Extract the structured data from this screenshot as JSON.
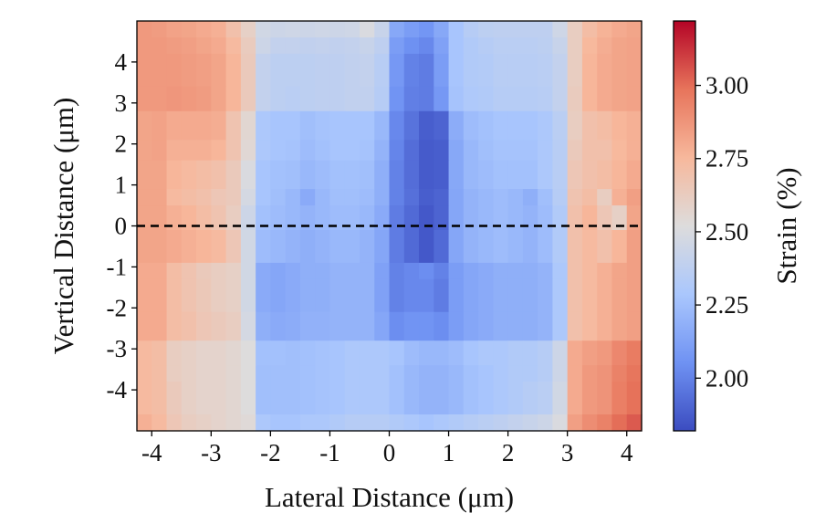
{
  "chart_data": {
    "type": "heatmap",
    "xlabel": "Lateral Distance (μm)",
    "ylabel": "Vertical Distance (μm)",
    "colorbar_label": "Strain (%)",
    "xlim": [
      -4.25,
      4.25
    ],
    "ylim": [
      -5.0,
      5.0
    ],
    "x_ticks": [
      -4,
      -3,
      -2,
      -1,
      0,
      1,
      2,
      3,
      4
    ],
    "x_tick_labels": [
      "-4",
      "-3",
      "-2",
      "-1",
      "0",
      "1",
      "2",
      "3",
      "4"
    ],
    "y_ticks": [
      4,
      3,
      2,
      1,
      0,
      -1,
      -2,
      -3,
      -4
    ],
    "y_tick_labels": [
      "4",
      "3",
      "2",
      "1",
      "0",
      "-1",
      "-2",
      "-3",
      "-4"
    ],
    "colorbar_range": [
      1.82,
      3.22
    ],
    "colorbar_ticks": [
      3.0,
      2.75,
      2.5,
      2.25,
      2.0
    ],
    "colorbar_tick_labels": [
      "3.00",
      "2.75",
      "2.50",
      "2.25",
      "2.00"
    ],
    "colormap": "coolwarm",
    "colormap_stops": [
      "#3b4cc0",
      "#6f92f3",
      "#aac7fd",
      "#dddcdc",
      "#f7b89c",
      "#e7745b",
      "#b40426"
    ],
    "reference_line": {
      "y": 0,
      "style": "dashed",
      "color": "#000000"
    },
    "cell_x_edges": [
      -4.25,
      -4.0,
      -3.75,
      -3.5,
      -3.25,
      -3.0,
      -2.75,
      -2.5,
      -2.25,
      -2.0,
      -1.75,
      -1.5,
      -1.25,
      -1.0,
      -0.75,
      -0.5,
      -0.25,
      0.0,
      0.25,
      0.5,
      0.75,
      1.0,
      1.25,
      1.5,
      1.75,
      2.0,
      2.25,
      2.5,
      2.75,
      3.0,
      3.25,
      3.5,
      3.75,
      4.0,
      4.25
    ],
    "row_y_edges": [
      [
        4.6,
        5.0
      ],
      [
        4.2,
        4.6
      ],
      [
        3.4,
        4.2
      ],
      [
        2.8,
        3.4
      ],
      [
        2.1,
        2.8
      ],
      [
        1.6,
        2.1
      ],
      [
        0.9,
        1.6
      ],
      [
        0.5,
        0.9
      ],
      [
        -0.1,
        0.5
      ],
      [
        -0.9,
        -0.1
      ],
      [
        -1.3,
        -0.9
      ],
      [
        -2.1,
        -1.3
      ],
      [
        -2.8,
        -2.1
      ],
      [
        -3.4,
        -2.8
      ],
      [
        -3.8,
        -3.4
      ],
      [
        -4.6,
        -3.8
      ],
      [
        -5.0,
        -4.6
      ]
    ],
    "values": [
      [
        2.86,
        2.85,
        2.83,
        2.82,
        2.8,
        2.78,
        2.7,
        2.6,
        2.46,
        2.44,
        2.45,
        2.44,
        2.45,
        2.44,
        2.45,
        2.5,
        2.42,
        2.15,
        2.1,
        2.07,
        2.15,
        2.28,
        2.34,
        2.37,
        2.38,
        2.38,
        2.38,
        2.38,
        2.45,
        2.62,
        2.72,
        2.77,
        2.8,
        2.82
      ],
      [
        2.86,
        2.86,
        2.85,
        2.84,
        2.82,
        2.8,
        2.74,
        2.63,
        2.44,
        2.4,
        2.4,
        2.39,
        2.4,
        2.39,
        2.4,
        2.42,
        2.38,
        2.1,
        2.05,
        2.02,
        2.12,
        2.28,
        2.32,
        2.34,
        2.36,
        2.36,
        2.36,
        2.37,
        2.42,
        2.62,
        2.75,
        2.79,
        2.82,
        2.83
      ],
      [
        2.86,
        2.86,
        2.86,
        2.85,
        2.84,
        2.82,
        2.76,
        2.64,
        2.4,
        2.37,
        2.37,
        2.37,
        2.38,
        2.38,
        2.39,
        2.4,
        2.35,
        2.08,
        2.0,
        1.98,
        2.1,
        2.28,
        2.32,
        2.33,
        2.35,
        2.35,
        2.35,
        2.36,
        2.4,
        2.62,
        2.76,
        2.8,
        2.82,
        2.83
      ],
      [
        2.86,
        2.86,
        2.87,
        2.86,
        2.85,
        2.82,
        2.76,
        2.64,
        2.4,
        2.37,
        2.36,
        2.37,
        2.38,
        2.38,
        2.39,
        2.39,
        2.34,
        2.06,
        1.99,
        1.98,
        2.08,
        2.27,
        2.31,
        2.32,
        2.34,
        2.34,
        2.34,
        2.35,
        2.4,
        2.63,
        2.76,
        2.8,
        2.82,
        2.83
      ],
      [
        2.82,
        2.83,
        2.8,
        2.8,
        2.8,
        2.79,
        2.68,
        2.56,
        2.3,
        2.28,
        2.28,
        2.25,
        2.27,
        2.28,
        2.28,
        2.28,
        2.22,
        2.02,
        1.95,
        1.88,
        1.9,
        2.17,
        2.24,
        2.26,
        2.28,
        2.28,
        2.28,
        2.3,
        2.36,
        2.62,
        2.7,
        2.72,
        2.76,
        2.78
      ],
      [
        2.82,
        2.83,
        2.78,
        2.78,
        2.78,
        2.76,
        2.68,
        2.55,
        2.3,
        2.28,
        2.27,
        2.24,
        2.26,
        2.28,
        2.28,
        2.27,
        2.2,
        2.01,
        1.93,
        1.87,
        1.88,
        2.15,
        2.22,
        2.25,
        2.27,
        2.27,
        2.27,
        2.3,
        2.35,
        2.64,
        2.7,
        2.7,
        2.75,
        2.78
      ],
      [
        2.82,
        2.82,
        2.76,
        2.74,
        2.72,
        2.7,
        2.64,
        2.5,
        2.28,
        2.26,
        2.25,
        2.22,
        2.24,
        2.26,
        2.26,
        2.25,
        2.18,
        2.0,
        1.93,
        1.87,
        1.88,
        2.15,
        2.22,
        2.24,
        2.26,
        2.26,
        2.26,
        2.3,
        2.35,
        2.66,
        2.7,
        2.72,
        2.76,
        2.8
      ],
      [
        2.82,
        2.82,
        2.74,
        2.72,
        2.7,
        2.66,
        2.64,
        2.48,
        2.28,
        2.25,
        2.22,
        2.16,
        2.22,
        2.25,
        2.25,
        2.24,
        2.18,
        2.0,
        1.94,
        1.88,
        1.9,
        2.14,
        2.2,
        2.22,
        2.24,
        2.22,
        2.18,
        2.25,
        2.34,
        2.68,
        2.72,
        2.62,
        2.78,
        2.84
      ],
      [
        2.82,
        2.82,
        2.78,
        2.76,
        2.72,
        2.68,
        2.62,
        2.44,
        2.26,
        2.24,
        2.22,
        2.2,
        2.22,
        2.24,
        2.24,
        2.22,
        2.16,
        1.98,
        1.92,
        1.86,
        1.9,
        2.14,
        2.2,
        2.22,
        2.24,
        2.22,
        2.2,
        2.24,
        2.32,
        2.7,
        2.76,
        2.66,
        2.6,
        2.82
      ],
      [
        2.82,
        2.82,
        2.8,
        2.78,
        2.76,
        2.74,
        2.66,
        2.46,
        2.24,
        2.22,
        2.2,
        2.18,
        2.2,
        2.22,
        2.22,
        2.2,
        2.14,
        1.98,
        1.92,
        1.86,
        1.92,
        2.14,
        2.2,
        2.22,
        2.24,
        2.22,
        2.2,
        2.24,
        2.32,
        2.7,
        2.74,
        2.7,
        2.76,
        2.84
      ],
      [
        2.8,
        2.8,
        2.72,
        2.68,
        2.64,
        2.62,
        2.6,
        2.46,
        2.16,
        2.14,
        2.16,
        2.18,
        2.18,
        2.2,
        2.2,
        2.2,
        2.12,
        2.0,
        2.02,
        2.04,
        2.0,
        2.1,
        2.14,
        2.16,
        2.18,
        2.18,
        2.18,
        2.2,
        2.3,
        2.7,
        2.74,
        2.78,
        2.82,
        2.84
      ],
      [
        2.8,
        2.8,
        2.72,
        2.68,
        2.65,
        2.62,
        2.6,
        2.46,
        2.16,
        2.14,
        2.16,
        2.18,
        2.18,
        2.2,
        2.2,
        2.2,
        2.12,
        2.0,
        2.02,
        2.02,
        1.98,
        2.1,
        2.14,
        2.16,
        2.18,
        2.18,
        2.18,
        2.2,
        2.3,
        2.7,
        2.74,
        2.78,
        2.82,
        2.84
      ],
      [
        2.8,
        2.8,
        2.72,
        2.7,
        2.66,
        2.64,
        2.62,
        2.48,
        2.18,
        2.16,
        2.17,
        2.19,
        2.19,
        2.2,
        2.2,
        2.2,
        2.14,
        2.04,
        2.06,
        2.06,
        2.04,
        2.1,
        2.14,
        2.16,
        2.18,
        2.18,
        2.18,
        2.2,
        2.3,
        2.7,
        2.74,
        2.78,
        2.82,
        2.84
      ],
      [
        2.74,
        2.72,
        2.62,
        2.6,
        2.58,
        2.58,
        2.56,
        2.52,
        2.26,
        2.26,
        2.25,
        2.26,
        2.27,
        2.28,
        2.3,
        2.3,
        2.3,
        2.28,
        2.24,
        2.22,
        2.22,
        2.24,
        2.28,
        2.3,
        2.3,
        2.32,
        2.32,
        2.34,
        2.44,
        2.8,
        2.84,
        2.86,
        2.92,
        2.96
      ],
      [
        2.74,
        2.72,
        2.62,
        2.6,
        2.58,
        2.58,
        2.56,
        2.52,
        2.25,
        2.25,
        2.25,
        2.26,
        2.27,
        2.28,
        2.3,
        2.3,
        2.3,
        2.26,
        2.22,
        2.2,
        2.2,
        2.22,
        2.26,
        2.28,
        2.3,
        2.32,
        2.32,
        2.34,
        2.44,
        2.8,
        2.86,
        2.88,
        2.94,
        2.98
      ],
      [
        2.74,
        2.72,
        2.64,
        2.6,
        2.58,
        2.58,
        2.56,
        2.52,
        2.25,
        2.25,
        2.25,
        2.26,
        2.27,
        2.28,
        2.3,
        2.3,
        2.3,
        2.26,
        2.22,
        2.2,
        2.2,
        2.22,
        2.26,
        2.28,
        2.3,
        2.32,
        2.34,
        2.36,
        2.46,
        2.8,
        2.86,
        2.88,
        2.95,
        2.99
      ],
      [
        2.78,
        2.74,
        2.66,
        2.62,
        2.6,
        2.58,
        2.56,
        2.54,
        2.3,
        2.28,
        2.28,
        2.3,
        2.3,
        2.32,
        2.34,
        2.34,
        2.34,
        2.32,
        2.3,
        2.28,
        2.3,
        2.32,
        2.34,
        2.36,
        2.38,
        2.4,
        2.42,
        2.44,
        2.5,
        2.84,
        2.9,
        2.94,
        3.0,
        3.04
      ]
    ]
  }
}
